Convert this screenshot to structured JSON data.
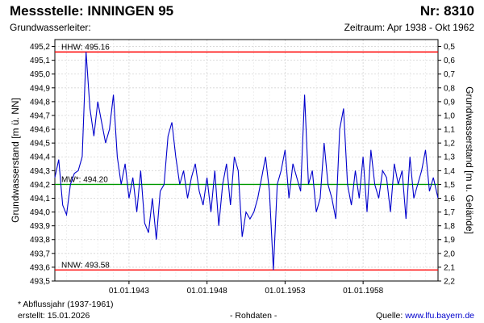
{
  "header": {
    "title": "Messstelle: INNINGEN 95",
    "number": "Nr: 8310",
    "subtitle": "Grundwasserleiter:",
    "period": "Zeitraum: Apr 1938 - Okt 1962"
  },
  "footer": {
    "note": "* Abflussjahr (1937-1961)",
    "created": "erstellt:  15.01.2026",
    "raw": "- Rohdaten -",
    "source_prefix": "Quelle: ",
    "source_link": "www.lfu.bayern.de"
  },
  "chart_data": {
    "type": "line",
    "ylabel": "Grundwasserstand [m ü. NN]",
    "y2label": "Grundwasserstand [m u. Gelände]",
    "ylim": [
      493.5,
      495.25
    ],
    "y_ticks": [
      "493,5",
      "493,6",
      "493,7",
      "493,8",
      "493,9",
      "494,0",
      "494,1",
      "494,2",
      "494,3",
      "494,4",
      "494,5",
      "494,6",
      "494,7",
      "494,8",
      "494,9",
      "495,0",
      "495,1",
      "495,2"
    ],
    "y2_ticks": [
      "0,5",
      "0,6",
      "0,7",
      "0,8",
      "0,9",
      "1,0",
      "1,1",
      "1,2",
      "1,3",
      "1,4",
      "1,5",
      "1,6",
      "1,7",
      "1,8",
      "1,9",
      "2,0",
      "2,1",
      "2,2"
    ],
    "xlim": [
      1938.25,
      1962.8
    ],
    "x_ticks": [
      {
        "label": "01.01.1943",
        "value": 1943.0
      },
      {
        "label": "01.01.1948",
        "value": 1948.0
      },
      {
        "label": "01.01.1953",
        "value": 1953.0
      },
      {
        "label": "01.01.1958",
        "value": 1958.0
      }
    ],
    "grid": true,
    "reference_lines": [
      {
        "label": "HHW: 495.16",
        "value": 495.16,
        "color": "#ff0000"
      },
      {
        "label": "MW*: 494.20",
        "value": 494.2,
        "color": "#009900"
      },
      {
        "label": "NNW: 493.58",
        "value": 493.58,
        "color": "#ff0000"
      }
    ],
    "series": [
      {
        "color": "#0000cc",
        "x": [
          1938.25,
          1938.5,
          1938.75,
          1939.0,
          1939.25,
          1939.5,
          1939.75,
          1940.0,
          1940.25,
          1940.5,
          1940.75,
          1941.0,
          1941.25,
          1941.5,
          1941.75,
          1942.0,
          1942.25,
          1942.5,
          1942.75,
          1943.0,
          1943.25,
          1943.5,
          1943.75,
          1944.0,
          1944.25,
          1944.5,
          1944.75,
          1945.0,
          1945.25,
          1945.5,
          1945.75,
          1946.0,
          1946.25,
          1946.5,
          1946.75,
          1947.0,
          1947.25,
          1947.5,
          1947.75,
          1948.0,
          1948.25,
          1948.5,
          1948.75,
          1949.0,
          1949.25,
          1949.5,
          1949.75,
          1950.0,
          1950.25,
          1950.5,
          1950.75,
          1951.0,
          1951.25,
          1951.5,
          1951.75,
          1952.0,
          1952.25,
          1952.5,
          1952.75,
          1953.0,
          1953.25,
          1953.5,
          1953.75,
          1954.0,
          1954.25,
          1954.5,
          1954.75,
          1955.0,
          1955.25,
          1955.5,
          1955.75,
          1956.0,
          1956.25,
          1956.5,
          1956.75,
          1957.0,
          1957.25,
          1957.5,
          1957.75,
          1958.0,
          1958.25,
          1958.5,
          1958.75,
          1959.0,
          1959.25,
          1959.5,
          1959.75,
          1960.0,
          1960.25,
          1960.5,
          1960.75,
          1961.0,
          1961.25,
          1961.5,
          1961.75,
          1962.0,
          1962.25,
          1962.5,
          1962.8
        ],
        "values": [
          494.25,
          494.38,
          494.05,
          493.98,
          494.2,
          494.28,
          494.3,
          494.4,
          495.16,
          494.75,
          494.55,
          494.8,
          494.65,
          494.5,
          494.6,
          494.85,
          494.4,
          494.2,
          494.35,
          494.1,
          494.25,
          494.0,
          494.3,
          493.92,
          493.85,
          494.1,
          493.8,
          494.15,
          494.2,
          494.55,
          494.65,
          494.4,
          494.2,
          494.3,
          494.1,
          494.25,
          494.35,
          494.15,
          494.05,
          494.25,
          494.0,
          494.3,
          493.9,
          494.2,
          494.35,
          494.05,
          494.4,
          494.3,
          493.82,
          494.0,
          493.95,
          494.0,
          494.1,
          494.25,
          494.4,
          494.15,
          493.58,
          494.2,
          494.3,
          494.45,
          494.1,
          494.35,
          494.25,
          494.15,
          494.85,
          494.2,
          494.3,
          494.0,
          494.1,
          494.5,
          494.2,
          494.1,
          493.95,
          494.6,
          494.75,
          494.2,
          494.05,
          494.3,
          494.1,
          494.4,
          494.0,
          494.45,
          494.2,
          494.1,
          494.3,
          494.25,
          494.0,
          494.35,
          494.2,
          494.3,
          493.95,
          494.4,
          494.1,
          494.2,
          494.3,
          494.45,
          494.15,
          494.25,
          494.1
        ]
      }
    ]
  }
}
